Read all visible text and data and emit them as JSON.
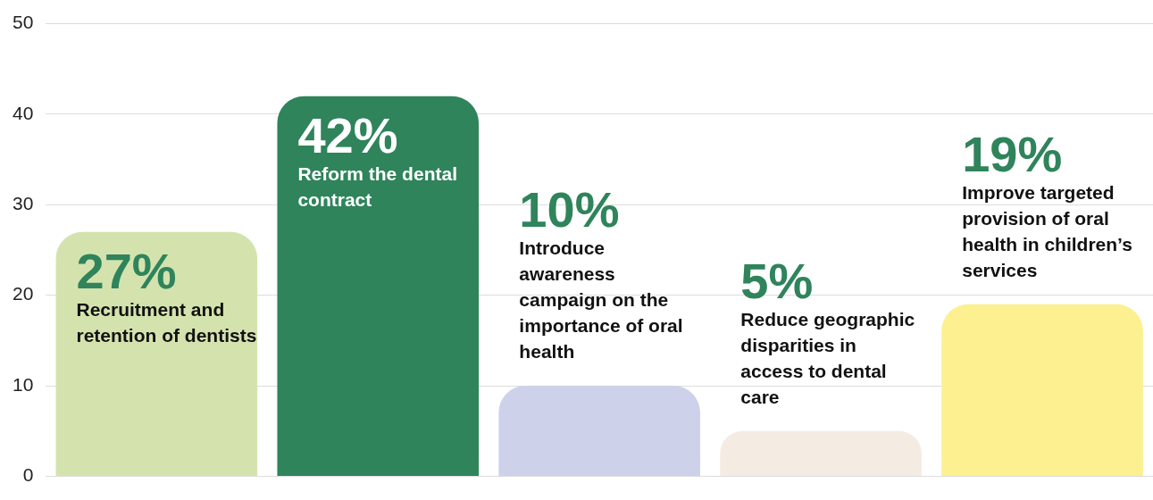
{
  "chart_data": {
    "type": "bar",
    "categories": [
      "Recruitment and retention of dentists",
      "Reform the dental contract",
      "Introduce awareness campaign on the importance of oral health",
      "Reduce geographic disparities in access to dental care",
      "Improve targeted provision of oral health in children’s services"
    ],
    "values": [
      27,
      42,
      10,
      5,
      19
    ],
    "colors": [
      "#d4e3ae",
      "#2f845b",
      "#cdd1ea",
      "#f4ece2",
      "#fcf090"
    ],
    "value_labels": [
      "27%",
      "42%",
      "10%",
      "5%",
      "19%"
    ],
    "ylim": [
      0,
      50
    ],
    "yticks": [
      0,
      10,
      20,
      30,
      40,
      50
    ],
    "grid": "y",
    "tick_labels": "y",
    "legend": false
  }
}
